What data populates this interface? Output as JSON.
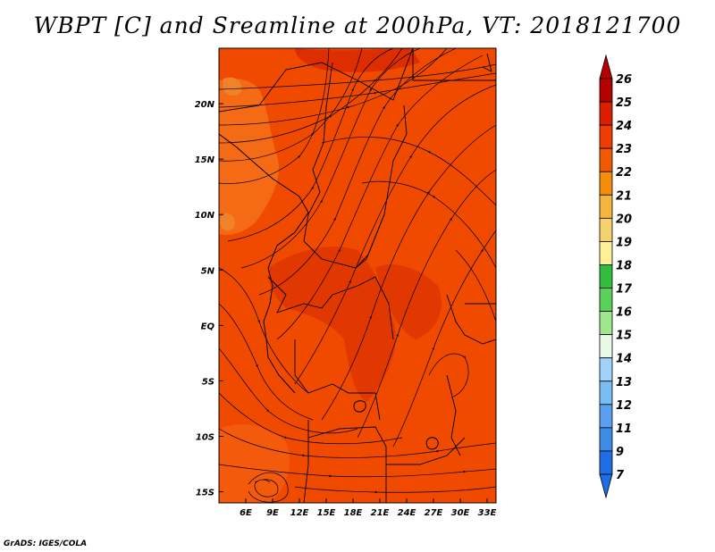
{
  "title": "WBPT [C] and Sreamline at 200hPa, VT: 2018121700",
  "footer": "GrADS: IGES/COLA",
  "map": {
    "lon_range": [
      3,
      34
    ],
    "lat_range": [
      -16,
      25
    ],
    "field_range_c": [
      23,
      25
    ],
    "x_ticks": [
      {
        "value": 6,
        "label": "6E"
      },
      {
        "value": 9,
        "label": "9E"
      },
      {
        "value": 12,
        "label": "12E"
      },
      {
        "value": 15,
        "label": "15E"
      },
      {
        "value": 18,
        "label": "18E"
      },
      {
        "value": 21,
        "label": "21E"
      },
      {
        "value": 24,
        "label": "24E"
      },
      {
        "value": 27,
        "label": "27E"
      },
      {
        "value": 30,
        "label": "30E"
      },
      {
        "value": 33,
        "label": "33E"
      }
    ],
    "y_ticks": [
      {
        "value": 20,
        "label": "20N"
      },
      {
        "value": 15,
        "label": "15N"
      },
      {
        "value": 10,
        "label": "10N"
      },
      {
        "value": 5,
        "label": "5N"
      },
      {
        "value": 0,
        "label": "EQ"
      },
      {
        "value": -5,
        "label": "5S"
      },
      {
        "value": -10,
        "label": "10S"
      },
      {
        "value": -15,
        "label": "15S"
      }
    ]
  },
  "colorbar": {
    "labels": [
      "26",
      "25",
      "24",
      "23",
      "22",
      "21",
      "20",
      "19",
      "18",
      "17",
      "16",
      "15",
      "14",
      "13",
      "12",
      "11",
      "9",
      "7"
    ],
    "colors": [
      "#b40000",
      "#dc1e00",
      "#f03c00",
      "#f05a00",
      "#f58c0a",
      "#f5b43c",
      "#f5d26e",
      "#fff096",
      "#32be3c",
      "#5ad25a",
      "#a0e68c",
      "#e6fae6",
      "#a0d2fa",
      "#78bef5",
      "#5aa0f0",
      "#3c8ce6",
      "#1e6ee6"
    ],
    "top_color": "#b40000",
    "bottom_color": "#1e6ee6"
  }
}
